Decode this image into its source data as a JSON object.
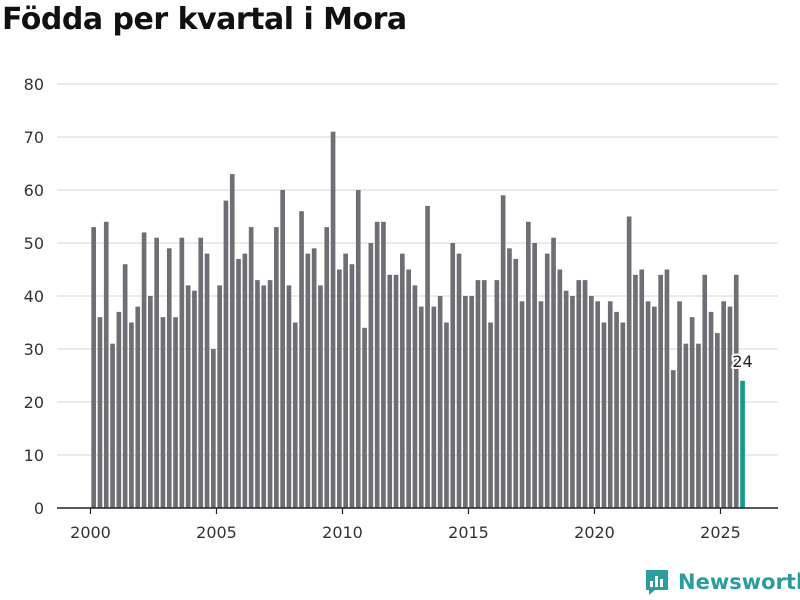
{
  "header": {
    "title": "Födda per kvartal i Mora"
  },
  "branding": {
    "logo_text": "Newsworthy"
  },
  "colors": {
    "bar": "#6f6e74",
    "highlight": "#119b8f",
    "grid": "#dddddd",
    "axis": "#222222"
  },
  "chart_data": {
    "type": "bar",
    "title": "Födda per kvartal i Mora",
    "xlabel": "",
    "ylabel": "",
    "ylim": [
      0,
      80
    ],
    "yticks": [
      0,
      10,
      20,
      30,
      40,
      50,
      60,
      70,
      80
    ],
    "xticks": [
      {
        "label": "2000",
        "year": 2000
      },
      {
        "label": "2005",
        "year": 2005
      },
      {
        "label": "2010",
        "year": 2010
      },
      {
        "label": "2015",
        "year": 2015
      },
      {
        "label": "2020",
        "year": 2020
      },
      {
        "label": "2025",
        "year": 2025
      }
    ],
    "start_year": 2000,
    "start_quarter": 1,
    "values": [
      53,
      36,
      54,
      31,
      37,
      46,
      35,
      38,
      52,
      40,
      51,
      36,
      49,
      36,
      51,
      42,
      41,
      51,
      48,
      30,
      42,
      58,
      63,
      47,
      48,
      53,
      43,
      42,
      43,
      53,
      60,
      42,
      35,
      56,
      48,
      49,
      42,
      53,
      71,
      45,
      48,
      46,
      60,
      34,
      50,
      54,
      54,
      44,
      44,
      48,
      45,
      42,
      38,
      57,
      38,
      40,
      35,
      50,
      48,
      40,
      40,
      43,
      43,
      35,
      43,
      59,
      49,
      47,
      39,
      54,
      50,
      39,
      48,
      51,
      45,
      41,
      40,
      43,
      43,
      40,
      39,
      35,
      39,
      37,
      35,
      55,
      44,
      45,
      39,
      38,
      44,
      45,
      26,
      39,
      31,
      36,
      31,
      44,
      37,
      33,
      39,
      38,
      44,
      24
    ],
    "highlight_last": true,
    "last_label": "24"
  }
}
